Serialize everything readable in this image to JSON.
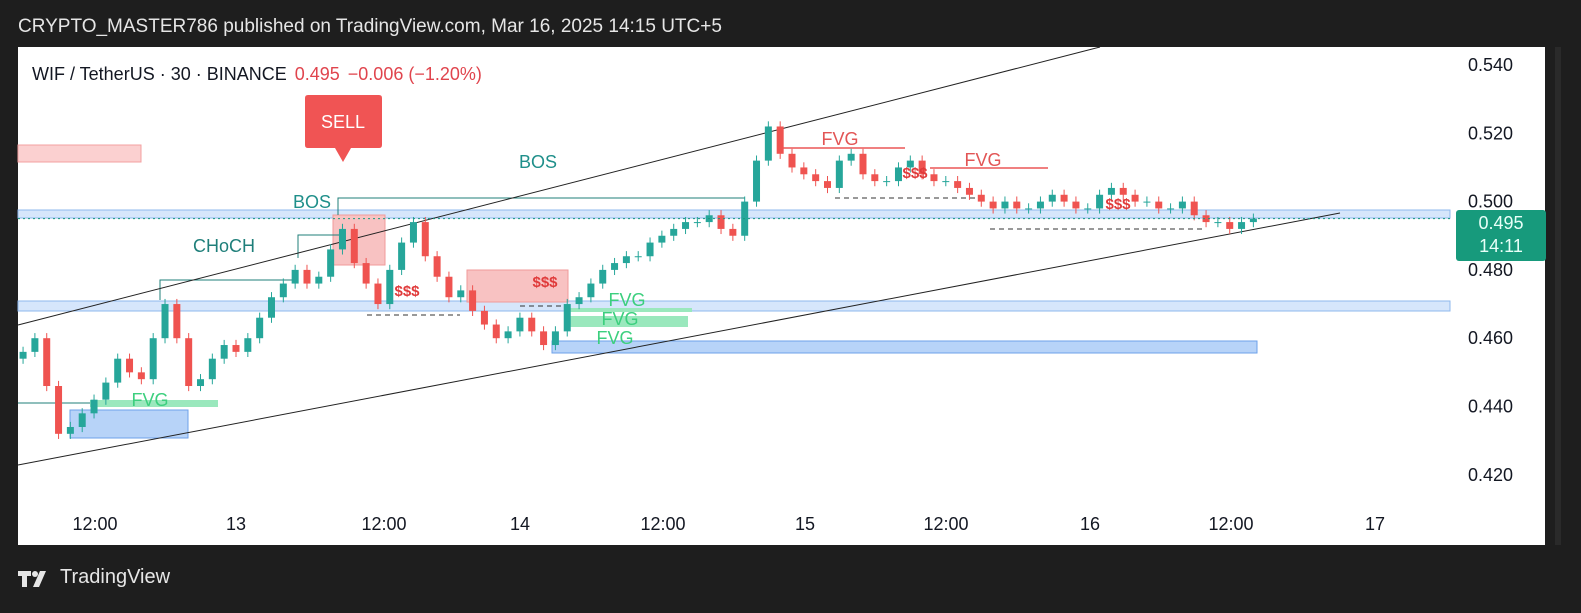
{
  "header": {
    "published": "CRYPTO_MASTER786 published on TradingView.com, Mar 16, 2025 14:15 UTC+5"
  },
  "legend": {
    "symbol": "WIF / TetherUS · 30 · BINANCE",
    "price": "0.495",
    "change": "−0.006 (−1.20%)"
  },
  "price_tag": {
    "price": "0.495",
    "countdown": "14:11"
  },
  "footer": {
    "brand": "TradingView"
  },
  "annotations": {
    "sell": "SELL",
    "bos1": "BOS",
    "bos2": "BOS",
    "choch": "CHoCH",
    "fvg_green": [
      "FVG",
      "FVG",
      "FVG",
      "FVG"
    ],
    "fvg_red": [
      "FVG",
      "FVG"
    ],
    "liquidity": [
      "$$$",
      "$$$",
      "$$$",
      "$$$"
    ]
  },
  "colors": {
    "up": "#26a69a",
    "down": "#ef5350",
    "accent": "#179a7c",
    "zone_blue": "#bbd6f7",
    "zone_red": "#f8c6c6",
    "fvg_green": "#7fe0a8"
  },
  "chart_data": {
    "type": "candlestick",
    "title": "WIF / TetherUS · 30 · BINANCE",
    "ylim": [
      0.41,
      0.545
    ],
    "yticks": [
      "0.540",
      "0.520",
      "0.500",
      "0.480",
      "0.460",
      "0.440",
      "0.420"
    ],
    "xticks": [
      "12:00",
      "13",
      "12:00",
      "14",
      "12:00",
      "15",
      "12:00",
      "16",
      "12:00",
      "17"
    ],
    "first_open": 0.454,
    "closes": [
      0.456,
      0.46,
      0.446,
      0.432,
      0.434,
      0.438,
      0.442,
      0.447,
      0.454,
      0.45,
      0.448,
      0.46,
      0.47,
      0.46,
      0.446,
      0.448,
      0.454,
      0.458,
      0.456,
      0.46,
      0.466,
      0.472,
      0.476,
      0.48,
      0.476,
      0.478,
      0.486,
      0.492,
      0.482,
      0.476,
      0.47,
      0.48,
      0.488,
      0.494,
      0.484,
      0.478,
      0.472,
      0.474,
      0.468,
      0.464,
      0.46,
      0.462,
      0.466,
      0.462,
      0.458,
      0.462,
      0.47,
      0.472,
      0.476,
      0.48,
      0.482,
      0.484,
      0.484,
      0.488,
      0.49,
      0.492,
      0.494,
      0.494,
      0.496,
      0.492,
      0.49,
      0.5,
      0.512,
      0.522,
      0.514,
      0.51,
      0.508,
      0.506,
      0.504,
      0.512,
      0.514,
      0.508,
      0.506,
      0.506,
      0.51,
      0.512,
      0.508,
      0.506,
      0.506,
      0.504,
      0.502,
      0.5,
      0.498,
      0.5,
      0.498,
      0.498,
      0.5,
      0.502,
      0.5,
      0.498,
      0.498,
      0.502,
      0.504,
      0.502,
      0.5,
      0.5,
      0.498,
      0.498,
      0.5,
      0.496,
      0.494,
      0.494,
      0.492,
      0.494,
      0.495
    ],
    "last_price": 0.495
  }
}
